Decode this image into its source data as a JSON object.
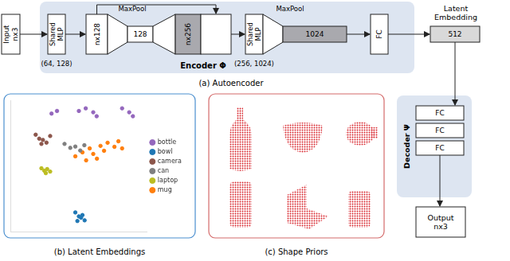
{
  "autoencoder": {
    "caption": "(a) Autoencoder",
    "encoder": {
      "label": "Encoder Φ",
      "input": "Input nx3",
      "mlp1": {
        "label": "Shared MLP",
        "sizes": "(64, 128)"
      },
      "feat1": "nx128",
      "pool1": "MaxPool",
      "global1": "128",
      "feat2": "nx256",
      "mlp2": {
        "label": "Shared MLP",
        "sizes": "(256, 1024)"
      },
      "pool2": "MaxPool",
      "global2": "1024",
      "fc": "FC"
    },
    "latent": {
      "title": "Latent Embedding",
      "size": "512"
    },
    "decoder": {
      "label": "Decoder Ψ",
      "layers": [
        "FC",
        "FC",
        "FC"
      ],
      "output": "Output nx3"
    }
  },
  "panels": {
    "latent_embeddings": {
      "caption": "(b) Latent Embeddings"
    },
    "shape_priors": {
      "caption": "(c) Shape Priors"
    }
  },
  "chart_data": {
    "type": "scatter",
    "xlim": [
      0,
      100
    ],
    "ylim": [
      0,
      100
    ],
    "grid": false,
    "tick_labels": false,
    "legend": "right",
    "marker": "circle",
    "series": [
      {
        "name": "bottle",
        "color": "#9467bd",
        "x": [
          50,
          55,
          60.5,
          63,
          81.6,
          86.8,
          89.5,
          30,
          34
        ],
        "values": [
          92,
          94,
          91,
          88,
          94,
          91,
          88,
          90,
          92
        ]
      },
      {
        "name": "bowl",
        "color": "#1f77b4",
        "x": [
          47.4,
          50,
          52.6,
          54.2,
          48.9,
          51.6
        ],
        "values": [
          15,
          12,
          13,
          9,
          8.5,
          11
        ]
      },
      {
        "name": "camera",
        "color": "#8c564b",
        "x": [
          18.4,
          21,
          23.7,
          26.3,
          22.6,
          29
        ],
        "values": [
          74,
          71,
          70,
          68,
          67,
          73
        ]
      },
      {
        "name": "can",
        "color": "#7f7f7f",
        "x": [
          39.5,
          43.7,
          47.4,
          51,
          54
        ],
        "values": [
          67,
          64,
          65,
          62,
          66
        ]
      },
      {
        "name": "laptop",
        "color": "#bcbd22",
        "x": [
          22.6,
          24.7,
          26.8,
          29,
          25.8
        ],
        "values": [
          48.5,
          46.7,
          47.9,
          46,
          44.8
        ]
      },
      {
        "name": "mug",
        "color": "#ff7f0e",
        "x": [
          47.4,
          52.6,
          57.9,
          60.5,
          65.8,
          68.4,
          71,
          76,
          78.9,
          81.6,
          55.3,
          63.2
        ],
        "values": [
          57.6,
          60.6,
          63.6,
          59.4,
          65.5,
          61.8,
          67.9,
          64.8,
          69,
          63.6,
          54.5,
          55.8
        ]
      }
    ]
  }
}
